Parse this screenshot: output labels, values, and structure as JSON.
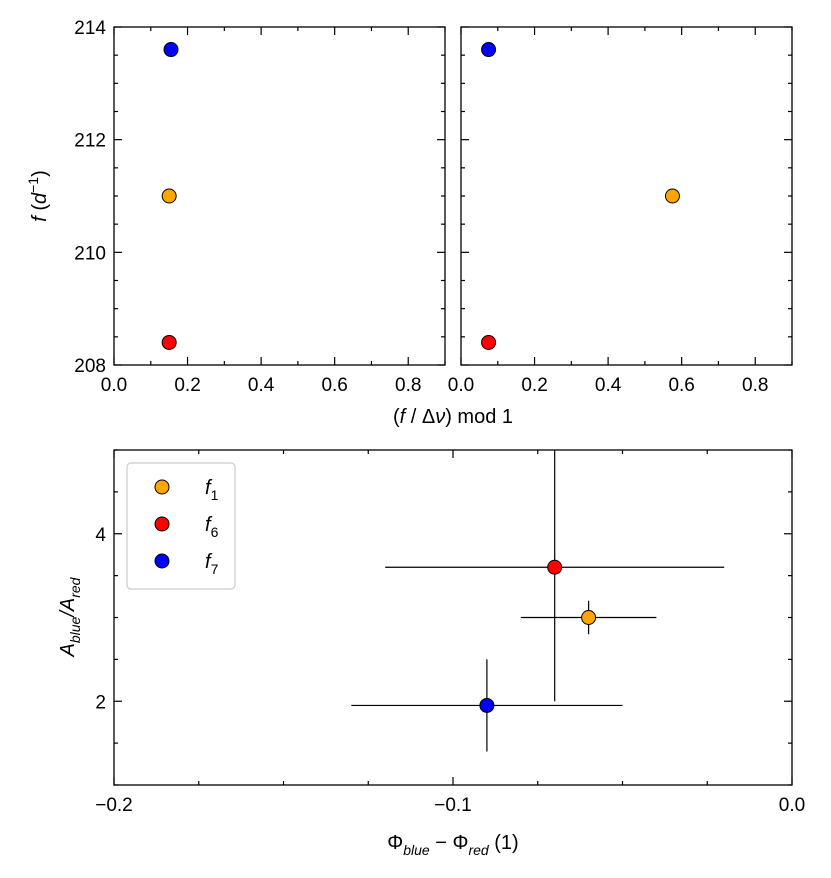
{
  "chart_data": [
    {
      "type": "scatter",
      "panel": "top-left",
      "xlim": [
        0.0,
        0.9
      ],
      "ylim": [
        208,
        214
      ],
      "xticks": [
        "0.0",
        "0.2",
        "0.4",
        "0.6",
        "0.8"
      ],
      "xtick_values": [
        0.0,
        0.2,
        0.4,
        0.6,
        0.8
      ],
      "yticks": [
        "208",
        "210",
        "212",
        "214"
      ],
      "ytick_values": [
        208,
        210,
        212,
        214
      ],
      "ylabel": "f (d^-1)",
      "points": [
        {
          "name": "f1",
          "x": 0.15,
          "y": 211.0,
          "color": "#ffa500"
        },
        {
          "name": "f6",
          "x": 0.15,
          "y": 208.4,
          "color": "#ff0000"
        },
        {
          "name": "f7",
          "x": 0.155,
          "y": 213.6,
          "color": "#0000ff"
        }
      ]
    },
    {
      "type": "scatter",
      "panel": "top-right",
      "xlim": [
        0.0,
        0.9
      ],
      "ylim": [
        208,
        214
      ],
      "xticks": [
        "0.0",
        "0.2",
        "0.4",
        "0.6",
        "0.8"
      ],
      "xtick_values": [
        0.0,
        0.2,
        0.4,
        0.6,
        0.8
      ],
      "points": [
        {
          "name": "f1",
          "x": 0.575,
          "y": 211.0,
          "color": "#ffa500"
        },
        {
          "name": "f6",
          "x": 0.075,
          "y": 208.4,
          "color": "#ff0000"
        },
        {
          "name": "f7",
          "x": 0.075,
          "y": 213.6,
          "color": "#0000ff"
        }
      ]
    },
    {
      "type": "scatter",
      "panel": "bottom",
      "xlim": [
        -0.2,
        0.0
      ],
      "ylim": [
        1.0,
        5.0
      ],
      "xticks": [
        "−0.2",
        "−0.1",
        "0.0"
      ],
      "xtick_values": [
        -0.2,
        -0.1,
        0.0
      ],
      "yticks": [
        "2",
        "4"
      ],
      "ytick_values": [
        2,
        4
      ],
      "xlabel": "Φblue − Φred (1)",
      "ylabel": "Ablue/Ared",
      "legend": {
        "position": "top-left",
        "entries": [
          {
            "label": "f",
            "sub": "1",
            "color": "#ffa500"
          },
          {
            "label": "f",
            "sub": "6",
            "color": "#ff0000"
          },
          {
            "label": "f",
            "sub": "7",
            "color": "#0000ff"
          }
        ]
      },
      "points": [
        {
          "name": "f1",
          "x": -0.06,
          "y": 3.0,
          "xerr": 0.02,
          "yerr": 0.2,
          "color": "#ffa500"
        },
        {
          "name": "f6",
          "x": -0.07,
          "y": 3.6,
          "xerr": 0.05,
          "yerr": 1.6,
          "color": "#ff0000"
        },
        {
          "name": "f7",
          "x": -0.09,
          "y": 1.95,
          "xerr": 0.04,
          "yerr": 0.55,
          "color": "#0000ff"
        }
      ]
    }
  ],
  "labels": {
    "top_ylabel_f": "f",
    "top_ylabel_d": "d",
    "top_ylabel_exp": "−1",
    "top_xlabel_open": "(",
    "top_xlabel_f": "f",
    "top_xlabel_mid": " / Δ",
    "top_xlabel_nu": "ν",
    "top_xlabel_close": ") mod 1",
    "bottom_xlabel_phi1": "Φ",
    "bottom_xlabel_sub1": "blue",
    "bottom_xlabel_minus": " − Φ",
    "bottom_xlabel_sub2": "red",
    "bottom_xlabel_tail": " (1)",
    "bottom_ylabel_a1": "A",
    "bottom_ylabel_sub1": "blue",
    "bottom_ylabel_slash": "/A",
    "bottom_ylabel_sub2": "red"
  }
}
